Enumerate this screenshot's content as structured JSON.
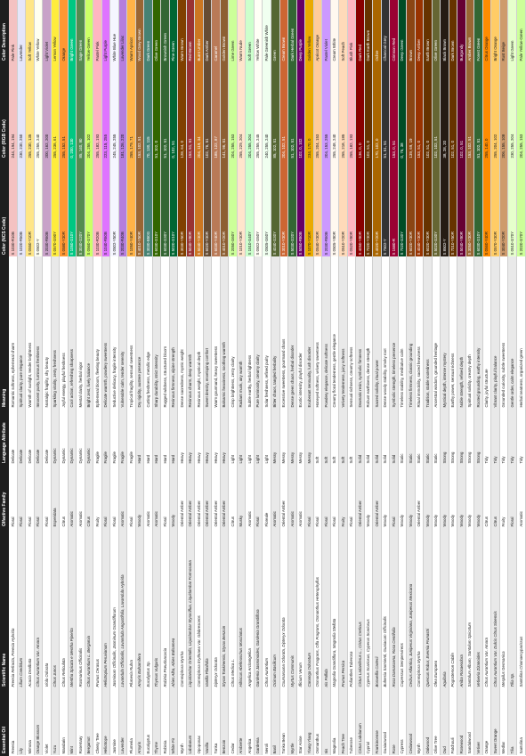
{
  "table": {
    "headers": [
      "Essential Oil",
      "Scientific Name",
      "Olfactive Family",
      "Language Attribute",
      "Meaning",
      "Color (NCS Code)",
      "Color (RGB Code)",
      "Color Description"
    ],
    "rows": [
      {
        "oil": "Freesia",
        "sci": "Freesia Refracta, Freesia Hybrida",
        "family": "Floral",
        "attr": "Delicate",
        "meaning": "Romantic softness, ephemeral charm",
        "ncs": "S 1030-R10B",
        "rgb": "244, 194, 194",
        "desc": "Pale Pink",
        "color": "#f4c2c2"
      },
      {
        "oil": "Lily",
        "sci": "Lilium Candidum",
        "family": "Floral",
        "attr": "Delicate",
        "meaning": "Spiritual clarity, pure elegance",
        "ncs": "S 1020-R50B",
        "rgb": "230, 230, 250",
        "desc": "Lavender",
        "color": "#e6e6fa"
      },
      {
        "oil": "Mimosa",
        "sci": "Acacia Dealbata",
        "family": "Floral",
        "attr": "Delicate",
        "meaning": "Warmth of sunlight, tender brightness",
        "ncs": "S 0550-Y10R",
        "rgb": "255, 230, 135",
        "desc": "Soft Yellow",
        "color": "#ffe687"
      },
      {
        "oil": "Orange Blossom",
        "sci": "Citrus Aurantium Var. Amara",
        "family": "Floral",
        "attr": "Delicate",
        "meaning": "Innocent purity, luminous freshness",
        "ncs": "S 0502-Y",
        "rgb": "255, 255, 240",
        "desc": "White Yellow",
        "color": "#fffff0"
      },
      {
        "oil": "Violet",
        "sci": "Viola Odorata",
        "family": "Floral",
        "attr": "Delicate",
        "meaning": "Nostalgic fragility, shy beauty",
        "ncs": "S 2030-R60B",
        "rgb": "200, 162, 200",
        "desc": "Light Violet",
        "color": "#c8a2c8"
      },
      {
        "oil": "Yuzu",
        "sci": "Citrus Junos",
        "family": "Esperidata",
        "attr": "Dynamic",
        "meaning": "Sparkling vitality, zesty freshness",
        "ncs": "S 0570-G90Y",
        "rgb": "255, 236, 61",
        "desc": "Lemon Yellow",
        "color": "#ffec3d"
      },
      {
        "oil": "Mandarin",
        "sci": "Citrus Reticulata",
        "family": "Citrus",
        "attr": "Dynamic",
        "meaning": "Joyful energy, playful freshness",
        "ncs": "S 0580-Y30R",
        "rgb": "255, 152, 51",
        "desc": "Orange",
        "color": "#ff9833"
      },
      {
        "oil": "Mint",
        "sci": "Mentha Spicata e Mentha Piperita",
        "family": "Aromatic",
        "attr": "Dynamic",
        "meaning": "Cool action, refreshing sharpness",
        "ncs": "S 1050-G10Y",
        "rgb": "0, 200, 130",
        "desc": "Bright Green",
        "color": "#00c882"
      },
      {
        "oil": "Rosemary",
        "sci": "Rosmarinus Officinalis",
        "family": "Aromatic",
        "attr": "Dynamic",
        "meaning": "Mental clarity, herbal vigor",
        "ncs": "S 3040-G20Y",
        "rgb": "85, 140, 80",
        "desc": "Sage Green",
        "color": "#558c50"
      },
      {
        "oil": "Bergamot",
        "sci": "Citrus Aurantium L. Bergamia",
        "family": "Citrus",
        "attr": "Dynamic",
        "meaning": "Bright zest, lively balance",
        "ncs": "S 0560-G70Y",
        "rgb": "204, 255, 102",
        "desc": "Yellow-Green",
        "color": "#ccff66"
      },
      {
        "oil": "Cherry Tree",
        "sci": "Prunus Cerasus",
        "family": "Fruity",
        "attr": "Fragile",
        "meaning": "Ephemeral bloom, fleeting beauty",
        "ncs": "S 1030-R20B",
        "rgb": "255, 182, 193",
        "desc": "Pastel Pink",
        "color": "#ffb6c1"
      },
      {
        "oil": "Heliotrope",
        "sci": "Heliotropium Peruvianum",
        "family": "Floral",
        "attr": "Fragile",
        "meaning": "Delicate warmth, powdery sweetness",
        "ncs": "S 1040-R60B",
        "rgb": "223, 115, 255",
        "desc": "Light Purple",
        "color": "#df73ff"
      },
      {
        "oil": "Jasmine",
        "sci": "Jasminum Officinalis, Jasminum Grandiflorum",
        "family": "Floral",
        "attr": "Fragile",
        "meaning": "Seductive delicacy, fragile intensity",
        "ncs": "S 0502-Y50R",
        "rgb": "245, 245, 255",
        "desc": "White Blue Hue",
        "color": "#f5f5ff"
      },
      {
        "oil": "Lavender",
        "sci": "Lavandula Officinalis, Lavandula Angustifolia, Lavandula Hybrida",
        "family": "Aromatic",
        "attr": "Fragile",
        "meaning": "Vulnerable calm, tender serenity",
        "ncs": "S 2030-R40B",
        "rgb": "181, 126, 220",
        "desc": "Lavender Lilac",
        "color": "#b57edc"
      },
      {
        "oil": "Plumeria",
        "sci": "Plumeria Rubra",
        "family": "Floral",
        "attr": "Fragile",
        "meaning": "Tropical fragility, sensual sweetness",
        "ncs": "S 1050-Y40R",
        "rgb": "255, 179, 71",
        "desc": "Warm Apricot",
        "color": "#ffb347"
      },
      {
        "oil": "Amyris",
        "sci": "Amyris Balsamifera",
        "family": "Woody",
        "attr": "Hard",
        "meaning": "Dry rigidity, austere presence",
        "ncs": "S 4010-Y50R",
        "rgb": "153, 102, 51",
        "desc": "Wood Grey-Brown",
        "color": "#996633"
      },
      {
        "oil": "Eucalyptus",
        "sci": "Eucalyptus Sp.",
        "family": "Aromatic",
        "attr": "Hard",
        "meaning": "Cutting freshness, metallic edge",
        "ncs": "S 3030-B50G",
        "rgb": "70, 130, 115",
        "desc": "Dark Green",
        "color": "#468273"
      },
      {
        "oil": "Thyme",
        "sci": "Thymus Vulgaris",
        "family": "Aromatic",
        "attr": "Hard",
        "meaning": "Sharp durability, strict intensity",
        "ncs": "S 6030-G10Y",
        "rgb": "51, 102, 0",
        "desc": "Olive Green",
        "color": "#336600"
      },
      {
        "oil": "Robinia",
        "sci": "Robinia Pseudoacacia",
        "family": "Floral",
        "attr": "Hard",
        "meaning": "Rugged wildness, structured bloom",
        "ncs": "S 6030-G30Y",
        "rgb": "51, 102, 51",
        "desc": "Brownish Green",
        "color": "#336633"
      },
      {
        "oil": "White Fir",
        "sci": "Abies Alba, Abies Balsamea",
        "family": "Woody",
        "attr": "Hard",
        "meaning": "Resinous firmness, alpine strength",
        "ncs": "S 5020-G10Y",
        "rgb": "0, 102, 51",
        "desc": "Pine Green",
        "color": "#006633"
      },
      {
        "oil": "Myrrh",
        "sci": "Commiphora Myrrha",
        "family": "Oriental Amber",
        "attr": "Heavy",
        "meaning": "Dense sacredness, mystic weight",
        "ncs": "S 3030-Y50R",
        "rgb": "128, 64, 0",
        "desc": "Warm Brown",
        "color": "#804000"
      },
      {
        "oil": "Labdanum",
        "sci": "Liquidambar Orientalis, Liquidambar Styraciflua, Liquidambar Formosana",
        "family": "Oriental Amber",
        "attr": "Heavy",
        "meaning": "Resinous charm, deep warmth",
        "ncs": "S 5040-Y80R",
        "rgb": "153, 51, 51",
        "desc": "Red-Brown",
        "color": "#993333"
      },
      {
        "oil": "Opoponax",
        "sci": "Commiphora Erythraea Var. Glabrescens",
        "family": "Oriental Amber",
        "attr": "Heavy",
        "meaning": "Resinous weight, mystical depth",
        "ncs": "S 5040-Y30R",
        "rgb": "204, 119, 34",
        "desc": "Burnt Umber",
        "color": "#cc7722"
      },
      {
        "oil": "Vanilla",
        "sci": "Vanilla Planifolia",
        "family": "Oriental Amber",
        "attr": "Heavy",
        "meaning": "Sweet density, enveloping comfort",
        "ncs": "S 6020-Y30R",
        "rgb": "102, 76, 51",
        "desc": "Dark Amber",
        "color": "#664c33"
      },
      {
        "oil": "Tonka",
        "sci": "Dipteryx Odorata",
        "family": "Oriental Amber",
        "attr": "Heavy",
        "meaning": "Warm gourmand, heavy sweetness",
        "ncs": "S 6030-Y40R",
        "rgb": "185, 122, 87",
        "desc": "Caramel",
        "color": "#b97a57"
      },
      {
        "oil": "Benzoin",
        "sci": "Styrax Tonkinensis, Styrax Benzoin",
        "family": "Oriental Amber",
        "attr": "Heavy",
        "meaning": "Balsamic heaviness, soothing warmth",
        "ncs": "S 4010-Y20R",
        "rgb": "141, 96, 51",
        "desc": "Golden Brown",
        "color": "#8d6033"
      },
      {
        "oil": "Cedar",
        "sci": "Citrus Medica L.",
        "family": "Citrus",
        "attr": "Light",
        "meaning": "Crisp brightness, zesty clarity",
        "ncs": "S 2050-G60Y",
        "rgb": "204, 255, 153",
        "desc": "Lime Green",
        "color": "#ccff99"
      },
      {
        "oil": "Ambrette",
        "sci": "Hibiscus Abelmoschus Moschatus",
        "family": "Musky",
        "attr": "Light",
        "meaning": "Radiant musk, airy warmth",
        "ncs": "S 1010-Y30R",
        "rgb": "255, 229, 204",
        "desc": "Warm Nude",
        "color": "#ffe5cc"
      },
      {
        "oil": "Angelica",
        "sci": "Angelica Archangelica",
        "family": "Aromatic",
        "attr": "Light",
        "meaning": "Subtle earthy, herbal lightness",
        "ncs": "S 1510-G40Y",
        "rgb": "204, 255, 204",
        "desc": "Soft Green",
        "color": "#ccffcc"
      },
      {
        "oil": "Gardenia",
        "sci": "Gardenia Jasminoides, Gardenia Grandiflora",
        "family": "Floral",
        "attr": "Light",
        "meaning": "Pure luminosity, creamy clarity",
        "ncs": "S 0502-G50Y",
        "rgb": "255, 255, 245",
        "desc": "Yellow White",
        "color": "#fffff5"
      },
      {
        "oil": "Neroli",
        "sci": "Citrus Aurantium",
        "family": "Floreale",
        "attr": "Light",
        "meaning": "Solar freshness, refined purity",
        "ncs": "S 0505-G60Y",
        "rgb": "240, 255, 240",
        "desc": "Pale Greenish White",
        "color": "#f0fff0"
      },
      {
        "oil": "Basil",
        "sci": "Ocimum Basilicum",
        "family": "Aromatic",
        "attr": "Messy",
        "meaning": "Bitter chaos, tangled herbality",
        "ncs": "S 4040-G30Y",
        "rgb": "85, 102, 51",
        "desc": "Green",
        "color": "#556633"
      },
      {
        "oil": "Tonka Bean",
        "sci": "Coumarouna Odorata, Dipteryx Odorata",
        "family": "Oriental Amber",
        "attr": "Messy",
        "meaning": "Excessive sweetness, gourmand chaos",
        "ncs": "S 3010-Y30R",
        "rgb": "204, 102, 51",
        "desc": "Cream Brown",
        "color": "#cc6633"
      },
      {
        "oil": "Myrtle",
        "sci": "Myrtus Communis",
        "family": "Aromatic",
        "attr": "Messy",
        "meaning": "Dense green chaos, herbal disorder",
        "ncs": "S 5030-G20Y",
        "rgb": "51, 102, 51",
        "desc": "Dark Herbal Green",
        "color": "#336633"
      },
      {
        "oil": "Star Anise",
        "sci": "Illicium Verum",
        "family": "Aromatic",
        "attr": "Messy",
        "meaning": "Exotic intensity, playful disorder",
        "ncs": "S 5050-R80B",
        "rgb": "102, 0, 102",
        "desc": "Deep Purple",
        "color": "#660066"
      },
      {
        "oil": "Ylang-Ylang",
        "sci": "Cananga Odoratum",
        "family": "Floral",
        "attr": "Messy",
        "meaning": "Exuberant sensuality, lush disorder",
        "ncs": "S 1070-Y10R",
        "rgb": "234, 170, 0",
        "desc": "Golden Yellow",
        "color": "#eaaa00"
      },
      {
        "oil": "Osmanthus",
        "sci": "Osmanthus Fragrans, Olfa Fragrans, Osmanthus Heterophyllus",
        "family": "Floral",
        "attr": "Soft",
        "meaning": "Honeyed softness, velvety sweetness",
        "ncs": "S 0540-Y30R",
        "rgb": "255, 204, 153",
        "desc": "Apricot Orange",
        "color": "#ffcc99"
      },
      {
        "oil": "Iris",
        "sci": "Iris Pallida",
        "family": "Floral",
        "attr": "Soft",
        "meaning": "Powdery elegance, delicate softness",
        "ncs": "S 2030-R60B",
        "rgb": "204, 153, 255",
        "desc": "Pastel Violet",
        "color": "#cc99ff"
      },
      {
        "oil": "Magnolia",
        "sci": "Magnolia Grandiflora, Magnolia Stellata",
        "family": "Floral",
        "attr": "Soft",
        "meaning": "Creamy floral tenderness, gentle elegance",
        "ncs": "S 0505-Y80R",
        "rgb": "255, 248, 240",
        "desc": "Cream White",
        "color": "#fff8f0"
      },
      {
        "oil": "Peach Tree",
        "sci": "Prunus Persica",
        "family": "Fruity",
        "attr": "Soft",
        "meaning": "Velvety tenderness, juicy softness",
        "ncs": "S 0510-Y20R",
        "rgb": "255, 218, 185",
        "desc": "Soft Peach",
        "color": "#ffdab9"
      },
      {
        "oil": "Tuberose",
        "sci": "Polianthes Tuberosa",
        "family": "Floral",
        "attr": "Soft",
        "meaning": "Sensual richness, creamy softness",
        "ncs": "S 0520-Y80R",
        "rgb": "255, 182, 193",
        "desc": "Blush Pink",
        "color": "#ffb6c1"
      },
      {
        "oil": "Cistus Labdanum",
        "sci": "Cistus Ladaniferus L., Cistus Creticus",
        "family": "Oriental Amber",
        "attr": "Solid",
        "meaning": "Dramatic resin, symbolic firmness",
        "ncs": "S 4050-Y80R",
        "rgb": "136, 0, 0",
        "desc": "Dark Red",
        "color": "#880000"
      },
      {
        "oil": "Cypriol",
        "sci": "Cyperus Scariosus, Cyperus Scariosus",
        "family": "Woody",
        "attr": "Solid",
        "meaning": "Robust earthiness, dense strength",
        "ncs": "S 7020-Y30R",
        "rgb": "102, 51, 0",
        "desc": "Dark Earth Brown",
        "color": "#663300"
      },
      {
        "oil": "Frankincense",
        "sci": "Boswellia Carterii",
        "family": "Oriental Amber",
        "attr": "Solid",
        "meaning": "Sacred solidity, ritual power",
        "ncs": "S 4020-Y20R",
        "rgb": "170, 102, 0",
        "desc": "Ochre",
        "color": "#aa6600"
      },
      {
        "oil": "Guaiacwood",
        "sci": "Bulnesia Sarmienti, Guaiacum Officinalis",
        "family": "Woody",
        "attr": "Solid",
        "meaning": "Dense woody stability, smoky root",
        "ncs": "S 7502-Y",
        "rgb": "51, 51, 51",
        "desc": "Charcoal Grey",
        "color": "#333333"
      },
      {
        "oil": "Rose",
        "sci": "Rosa Damascena, Rosa Centifolia",
        "family": "Floral",
        "attr": "Solid",
        "meaning": "Symbolic strength, timeless presence",
        "ncs": "S 1580-R",
        "rgb": "153, 0, 51",
        "desc": "Crimson Red",
        "color": "#990033"
      },
      {
        "oil": "Cypress",
        "sci": "Cupressus Sempervirens",
        "family": "Woody",
        "attr": "Static",
        "meaning": "Timeless stability, meditative calm",
        "ncs": "S 7020-G30Y",
        "rgb": "0, 76, 38",
        "desc": "Deep Green",
        "color": "#004c26"
      },
      {
        "oil": "Cedarwood",
        "sci": "Cedrus Atlantica, Juniperus Virginiana, Juniperus Mexicana",
        "family": "Woody",
        "attr": "Static",
        "meaning": "Timeless firmness, classic grounding",
        "ncs": "S 6020-Y30R",
        "rgb": "139, 69, 19",
        "desc": "Brown",
        "color": "#8b4513"
      },
      {
        "oil": "Myrrh",
        "sci": "Commiphora Myrrha",
        "family": "Oriental Amber",
        "attr": "Static",
        "meaning": "Ritual immobility, sacred heaviness",
        "ncs": "S 4040-Y30R",
        "rgb": "153, 51, 0",
        "desc": "Deep Amber",
        "color": "#993300"
      },
      {
        "oil": "Oakwood",
        "sci": "Quercus Robur, Evernia Prunastri",
        "family": "Woody",
        "attr": "Static",
        "meaning": "Tradition, stable rootedness",
        "ncs": "S 6020-Y30R",
        "rgb": "102, 51, 0",
        "desc": "Earth Brown",
        "color": "#663300"
      },
      {
        "oil": "Olive Tree",
        "sci": "Olea Europaea",
        "family": "Woody",
        "attr": "Static",
        "meaning": "Ancestral wisdom, grounded heritage",
        "ncs": "S 5020-G30Y",
        "rgb": "102, 102, 51",
        "desc": "Olive Green",
        "color": "#666633"
      },
      {
        "oil": "Oud",
        "sci": "Aquilaria",
        "family": "Woody",
        "attr": "Strong",
        "meaning": "Mystical depth, intense mystery",
        "ncs": "S 8502-Y",
        "rgb": "38, 28, 20",
        "desc": "Black Brown",
        "color": "#261c14"
      },
      {
        "oil": "Patchouli",
        "sci": "Pogostemon Cablin",
        "family": "Woody",
        "attr": "Strong",
        "meaning": "Earthy power, sensual richness",
        "ncs": "S 7010-Y50R",
        "rgb": "102, 51, 0",
        "desc": "Dark Brown",
        "color": "#663300"
      },
      {
        "oil": "Rosewood",
        "sci": "Aniba Rosaeodora",
        "family": "Woody",
        "attr": "Strong",
        "meaning": "Noble strength, refined depth",
        "ncs": "S 5040-Y80R",
        "rgb": "102, 0, 51",
        "desc": "Burgundy",
        "color": "#660033"
      },
      {
        "oil": "Sandalwood",
        "sci": "Santalum Album, Santalum Spicatum",
        "family": "Woody",
        "attr": "Strong",
        "meaning": "Spiritual solidity, creamy depth",
        "ncs": "S 3050-Y30R",
        "rgb": "153, 102, 51",
        "desc": "Amber Brown",
        "color": "#996633"
      },
      {
        "oil": "Vetiver",
        "sci": "Vetiveria Zizanoides",
        "family": "Woody",
        "attr": "Strong",
        "meaning": "Rooted grounding, earthy intensity",
        "ncs": "S 6030-G10Y",
        "rgb": "51, 102, 51",
        "desc": "Forest Green",
        "color": "#336633"
      },
      {
        "oil": "Orange",
        "sci": "Citrus Aurantium Var. Amara",
        "family": "Citrus",
        "attr": "Tidy",
        "meaning": "Clarity, joyful structure",
        "ncs": "S 0560-Y40R",
        "rgb": "255, 140, 0",
        "desc": "Citrus Orange",
        "color": "#ff8c00"
      },
      {
        "oil": "Sweet Orange",
        "sci": "Citrus Aurantium Var. Dulcis Citrus Sinensis",
        "family": "Citrus",
        "attr": "Tidy",
        "meaning": "Vibrant clarity, playful balance",
        "ncs": "S 0570-Y30R",
        "rgb": "255, 204, 102",
        "desc": "Bright Orange",
        "color": "#ffcc66"
      },
      {
        "oil": "Medlar",
        "sci": "Mespilus Germanica",
        "family": "Fruity",
        "attr": "Tidy",
        "meaning": "Grounded curiosity, subtle sweetness",
        "ncs": "S 3040-Y20R",
        "rgb": "206, 155, 108",
        "desc": "Rust Beige",
        "color": "#ce9b6c"
      },
      {
        "oil": "Tilia",
        "sci": "Tilia Sp.",
        "family": "Floral",
        "attr": "Tidy",
        "meaning": "Gentle order, calm elegance",
        "ncs": "S 0510-G70Y",
        "rgb": "230, 255, 204",
        "desc": "Light Green",
        "color": "#e6ffcc"
      },
      {
        "oil": "Santolina",
        "sci": "Santolina Chamaecyparissus",
        "family": "Aromatic",
        "attr": "Tidy",
        "meaning": "Herbal neatness, organized green",
        "ncs": "S 2020-G70Y",
        "rgb": "204, 255, 153",
        "desc": "Pale Yellow-Green",
        "color": "#ccff99"
      }
    ]
  }
}
